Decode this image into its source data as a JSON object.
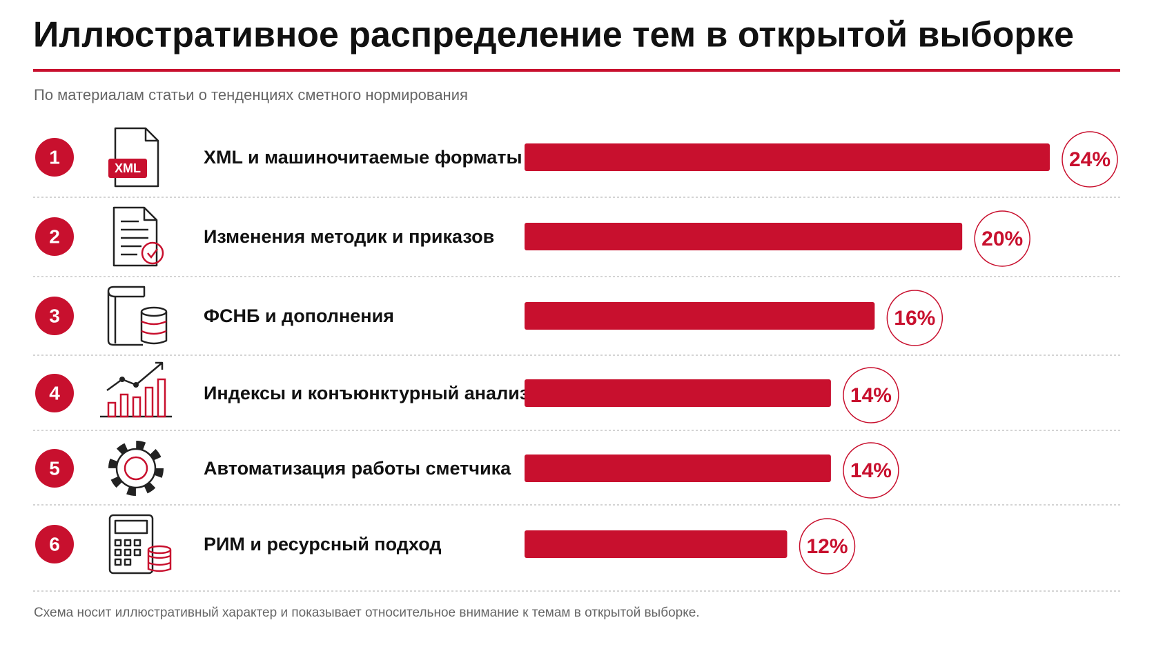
{
  "chart_data": {
    "type": "bar",
    "orientation": "horizontal",
    "title": "Иллюстративное распределение тем в открытой выборке",
    "subtitle": "По материалам статьи о тенденциях сметного нормирования",
    "ranks": [
      1,
      2,
      3,
      4,
      5,
      6
    ],
    "categories": [
      "XML и машиночитаемые форматы",
      "Изменения методик и приказов",
      "ФСНБ и дополнения",
      "Индексы и конъюнктурный анализ",
      "Автоматизация работы сметчика",
      "РИМ и ресурсный подход"
    ],
    "values": [
      24,
      20,
      16,
      14,
      14,
      12
    ],
    "value_labels": [
      "24%",
      "20%",
      "16%",
      "14%",
      "14%",
      "12%"
    ],
    "color": "#c8102e",
    "xml_icon_label": "XML",
    "footnote": "Схема носит иллюстративный характер и показывает относительное внимание к темам в открытой выборке."
  }
}
